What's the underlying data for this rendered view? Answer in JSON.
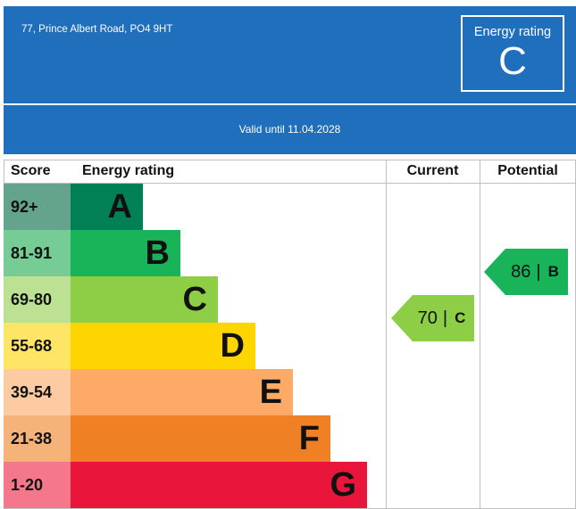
{
  "header": {
    "address": "77, Prince Albert Road, PO4 9HT",
    "rating_label": "Energy rating",
    "rating_letter": "C",
    "valid_text": "Valid until 11.04.2028"
  },
  "table": {
    "score_header": "Score",
    "rating_header": "Energy rating",
    "current_header": "Current",
    "potential_header": "Potential"
  },
  "chart_data": {
    "type": "bar",
    "bands": [
      {
        "score": "92+",
        "letter": "A",
        "color": "#008054",
        "score_bg": "#65a48c"
      },
      {
        "score": "81-91",
        "letter": "B",
        "color": "#19b459",
        "score_bg": "#75cd95"
      },
      {
        "score": "69-80",
        "letter": "C",
        "color": "#8dce46",
        "score_bg": "#bde193"
      },
      {
        "score": "55-68",
        "letter": "D",
        "color": "#ffd500",
        "score_bg": "#ffe566"
      },
      {
        "score": "39-54",
        "letter": "E",
        "color": "#fcaa65",
        "score_bg": "#fdcba2"
      },
      {
        "score": "21-38",
        "letter": "F",
        "color": "#ef8023",
        "score_bg": "#f5b37a"
      },
      {
        "score": "1-20",
        "letter": "G",
        "color": "#e9153b",
        "score_bg": "#f4778b"
      }
    ],
    "current": {
      "value": 70,
      "letter": "C",
      "color": "#8dce46"
    },
    "potential": {
      "value": 86,
      "letter": "B",
      "color": "#19b459"
    }
  }
}
